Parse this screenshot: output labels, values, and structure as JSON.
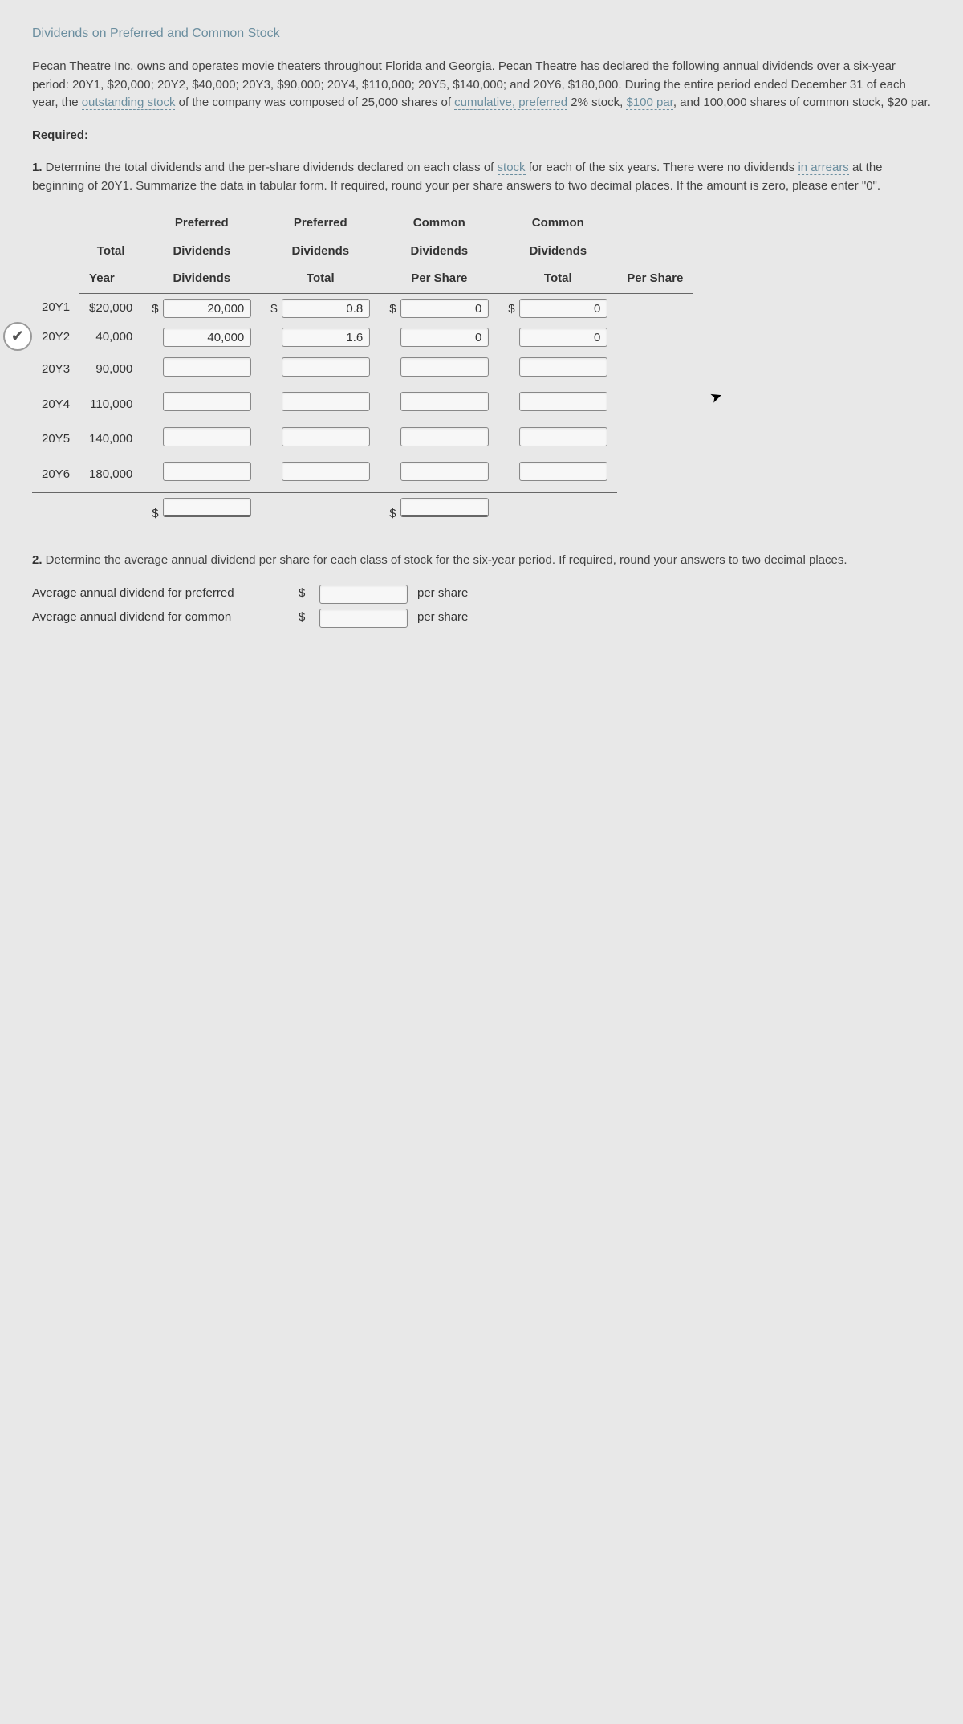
{
  "title": "Dividends on Preferred and Common Stock",
  "intro_pre": "Pecan Theatre Inc. owns and operates movie theaters throughout Florida and Georgia. Pecan Theatre has declared the following annual dividends over a six-year period: 20Y1, $20,000; 20Y2, $40,000; 20Y3, $90,000; 20Y4, $110,000; 20Y5, $140,000; and 20Y6, $180,000. During the entire period ended December 31 of each year, the ",
  "link1": "outstanding stock",
  "intro_mid1": " of the company was composed of 25,000 shares of ",
  "link2": "cumulative, preferred",
  "intro_mid2": " 2% stock, ",
  "link3": "$100 par",
  "intro_end": ", and 100,000 shares of common stock, $20 par.",
  "required": "Required:",
  "q1_pre": "1.",
  "q1_text_a": "  Determine the total dividends and the per-share dividends declared on each class of ",
  "q1_link_stock": "stock",
  "q1_text_b": " for each of the six years. There were no dividends ",
  "q1_link_arrears": "in arrears",
  "q1_text_c": " at the beginning of 20Y1. Summarize the data in tabular form. If required, round your per share answers to two decimal places. If the amount is zero, please enter \"0\".",
  "headers": {
    "year": "Year",
    "total_div": "Total Dividends",
    "pref_tot": "Preferred Dividends Total",
    "pref_ps": "Preferred Dividends Per Share",
    "com_tot": "Common Dividends Total",
    "com_ps": "Common Dividends Per Share",
    "pref": "Preferred",
    "dividends": "Dividends",
    "total": "Total",
    "pershare": "Per Share",
    "common": "Common"
  },
  "rows": [
    {
      "year": "20Y1",
      "total": "$20,000",
      "pref_tot": "20,000",
      "pref_ps": "0.8",
      "com_tot": "0",
      "com_ps": "0"
    },
    {
      "year": "20Y2",
      "total": "40,000",
      "pref_tot": "40,000",
      "pref_ps": "1.6",
      "com_tot": "0",
      "com_ps": "0"
    },
    {
      "year": "20Y3",
      "total": "90,000",
      "pref_tot": "",
      "pref_ps": "",
      "com_tot": "",
      "com_ps": ""
    },
    {
      "year": "20Y4",
      "total": "110,000",
      "pref_tot": "",
      "pref_ps": "",
      "com_tot": "",
      "com_ps": ""
    },
    {
      "year": "20Y5",
      "total": "140,000",
      "pref_tot": "",
      "pref_ps": "",
      "com_tot": "",
      "com_ps": ""
    },
    {
      "year": "20Y6",
      "total": "180,000",
      "pref_tot": "",
      "pref_ps": "",
      "com_tot": "",
      "com_ps": ""
    }
  ],
  "q2_pre": "2.",
  "q2_text": "  Determine the average annual dividend per share for each class of stock for the six-year period. If required, round your answers to two decimal places.",
  "avg_pref_label": "Average annual dividend for preferred",
  "avg_com_label": "Average annual dividend for common",
  "per_share": "per share",
  "colors": {
    "background": "#e8e8e8",
    "text": "#333333",
    "link": "#6b8e9f",
    "input_bg": "#f7f7f7",
    "input_border": "#888888",
    "rule": "#666666"
  }
}
